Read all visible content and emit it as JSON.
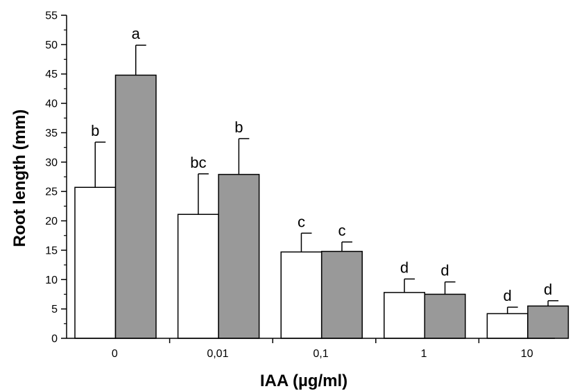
{
  "chart_data": {
    "type": "bar",
    "title": "",
    "xlabel": "IAA (µg/ml)",
    "ylabel": "Root length (mm)",
    "ylim": [
      0,
      55
    ],
    "yticks": [
      0,
      5,
      10,
      15,
      20,
      25,
      30,
      35,
      40,
      45,
      50,
      55
    ],
    "categories": [
      "0",
      "0,01",
      "0,1",
      "1",
      "10"
    ],
    "grid": false,
    "legend": "none",
    "series": [
      {
        "color": "#ffffff",
        "values": [
          25.7,
          21.1,
          14.7,
          7.8,
          4.2
        ],
        "errors": [
          7.7,
          6.9,
          3.2,
          2.3,
          1.1
        ],
        "labels": [
          "b",
          "bc",
          "c",
          "d",
          "d"
        ]
      },
      {
        "color": "#999999",
        "values": [
          44.8,
          27.9,
          14.8,
          7.5,
          5.5
        ],
        "errors": [
          5.1,
          6.1,
          1.6,
          2.1,
          0.9
        ],
        "labels": [
          "a",
          "b",
          "c",
          "d",
          "d"
        ]
      }
    ]
  }
}
